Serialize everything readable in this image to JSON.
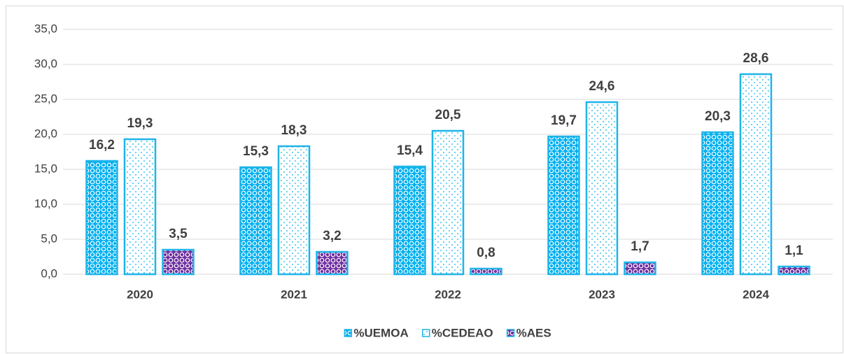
{
  "chart_data": {
    "type": "bar",
    "categories": [
      "2020",
      "2021",
      "2022",
      "2023",
      "2024"
    ],
    "series": [
      {
        "name": "%UEMOA",
        "color": "#00b0f0",
        "values": [
          16.2,
          15.3,
          15.4,
          19.7,
          20.3
        ],
        "value_labels": [
          "16,2",
          "15,3",
          "15,4",
          "19,7",
          "20,3"
        ]
      },
      {
        "name": "%CEDEAO",
        "color": "#00b0f0",
        "values": [
          19.3,
          18.3,
          20.5,
          24.6,
          28.6
        ],
        "value_labels": [
          "19,3",
          "18,3",
          "20,5",
          "24,6",
          "28,6"
        ]
      },
      {
        "name": "%AES",
        "color": "#7030a0",
        "values": [
          3.5,
          3.2,
          0.8,
          1.7,
          1.1
        ],
        "value_labels": [
          "3,5",
          "3,2",
          "0,8",
          "1,7",
          "1,1"
        ]
      }
    ],
    "ylim": [
      0,
      35
    ],
    "yticks": [
      {
        "value": 0,
        "label": "0,0"
      },
      {
        "value": 5,
        "label": "5,0"
      },
      {
        "value": 10,
        "label": "10,0"
      },
      {
        "value": 15,
        "label": "15,0"
      },
      {
        "value": 20,
        "label": "20,0"
      },
      {
        "value": 25,
        "label": "25,0"
      },
      {
        "value": 30,
        "label": "30,0"
      },
      {
        "value": 35,
        "label": "35,0"
      }
    ],
    "grid": true,
    "legend": "bottom"
  }
}
